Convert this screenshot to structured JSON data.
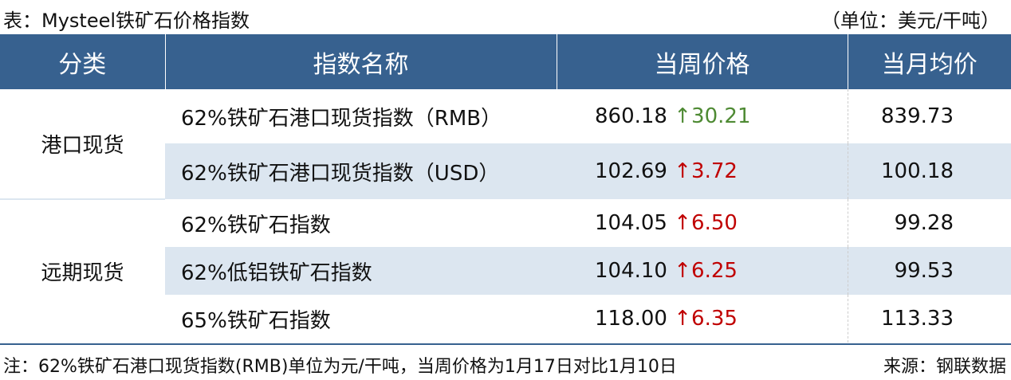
{
  "title": "表：Mysteel铁矿石价格指数",
  "unit": "（单位：美元/干吨）",
  "headers": [
    "分类",
    "指数名称",
    "当周价格",
    "当月均价"
  ],
  "groups": [
    "港口现货",
    "远期现货"
  ],
  "rows": [
    {
      "name": "62%铁矿石港口现货指数（RMB）",
      "price": "860.18",
      "arrow": "↑",
      "change": "30.21",
      "avg": "839.73",
      "change_color": "#4E8A33"
    },
    {
      "name": "62%铁矿石港口现货指数（USD）",
      "price": "102.69",
      "arrow": "↑",
      "change": "3.72",
      "avg": "100.18",
      "change_color": "#C00000"
    },
    {
      "name": "62%铁矿石指数",
      "price": "104.05",
      "arrow": "↑",
      "change": "6.50",
      "avg": "99.28",
      "change_color": "#C00000"
    },
    {
      "name": "62%低铝铁矿石指数",
      "price": "104.10",
      "arrow": "↑",
      "change": "6.25",
      "avg": "99.53",
      "change_color": "#C00000"
    },
    {
      "name": "65%铁矿石指数",
      "price": "118.00",
      "arrow": "↑",
      "change": "6.35",
      "avg": "113.33",
      "change_color": "#C00000"
    }
  ],
  "note": "注：62%铁矿石港口现货指数(RMB)单位为元/干吨，当周价格为1月17日对比1月10日",
  "source": "来源：钢联数据",
  "colors": {
    "header": "#37618F",
    "band": "#DCE6F0"
  }
}
